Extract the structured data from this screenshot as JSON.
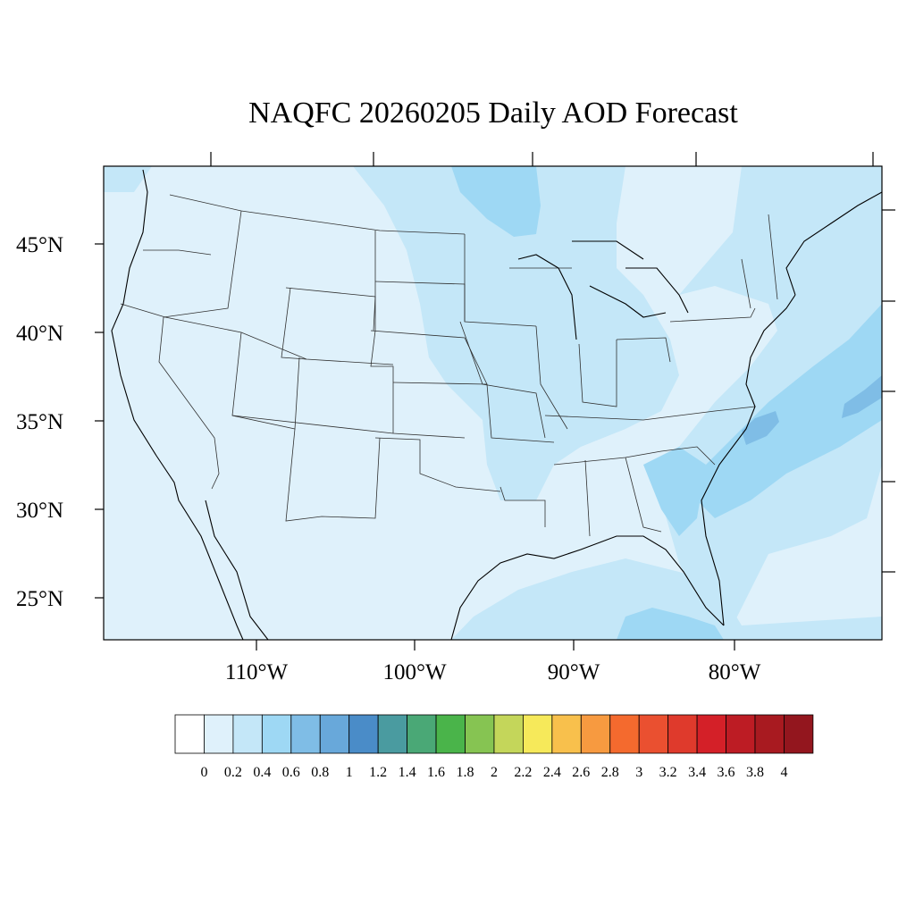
{
  "title": "NAQFC 20260205 Daily AOD Forecast",
  "map": {
    "lat_labels": [
      "45°N",
      "40°N",
      "35°N",
      "30°N",
      "25°N"
    ],
    "lon_labels": [
      "110°W",
      "100°W",
      "90°W",
      "80°W"
    ],
    "field_colors": {
      "background": "#dff1fb",
      "band_02_04": "#c4e7f8",
      "band_04_06": "#9ed8f4",
      "band_06_08": "#7fbde6"
    }
  },
  "colorbar": {
    "labels": [
      "0",
      "0.2",
      "0.4",
      "0.6",
      "0.8",
      "1",
      "1.2",
      "1.4",
      "1.6",
      "1.8",
      "2",
      "2.2",
      "2.4",
      "2.6",
      "2.8",
      "3",
      "3.2",
      "3.4",
      "3.6",
      "3.8",
      "4"
    ],
    "colors": [
      "#ffffff",
      "#dff1fb",
      "#c4e7f8",
      "#9ed8f4",
      "#7fbde6",
      "#68a8da",
      "#4a8cc8",
      "#4a9ba0",
      "#4aa876",
      "#4ab44a",
      "#86c452",
      "#c4d65a",
      "#f6e95a",
      "#f8c04c",
      "#f79a40",
      "#f46a2e",
      "#ea5030",
      "#df3a2c",
      "#d42028",
      "#bd1c24",
      "#a81a20",
      "#93161e"
    ]
  }
}
